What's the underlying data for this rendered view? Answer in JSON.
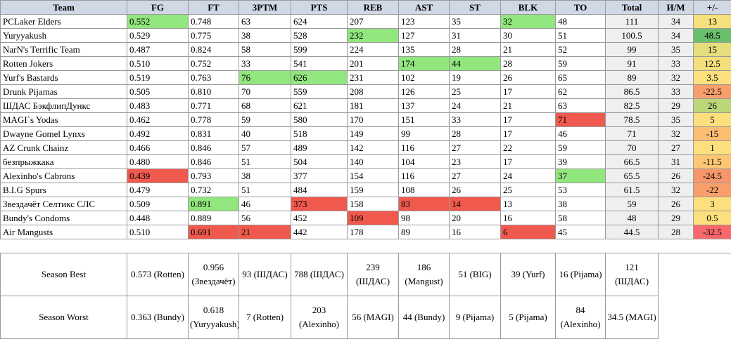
{
  "headers": [
    "Team",
    "FG",
    "FT",
    "3PTM",
    "PTS",
    "REB",
    "AST",
    "ST",
    "BLK",
    "TO",
    "Total",
    "И/М",
    "+/-"
  ],
  "colors": {
    "header": "#d0d8e6",
    "green_highlight": "#92e67e",
    "red_highlight": "#f05a4e",
    "total_bg": "#efefef"
  },
  "rows": [
    {
      "team": "PCLaker Elders",
      "fg": "0.552",
      "ft": "0.748",
      "tpm": "63",
      "pts": "624",
      "reb": "207",
      "ast": "123",
      "st": "35",
      "blk": "32",
      "to": "48",
      "total": "111",
      "im": "34",
      "pm": "13",
      "pm_color": "#f5e07c",
      "hl": {
        "fg": "green",
        "blk": "green"
      }
    },
    {
      "team": "Yuryyakush",
      "fg": "0.529",
      "ft": "0.775",
      "tpm": "38",
      "pts": "528",
      "reb": "232",
      "ast": "127",
      "st": "31",
      "blk": "30",
      "to": "51",
      "total": "100.5",
      "im": "34",
      "pm": "48.5",
      "pm_color": "#6abf6a",
      "hl": {
        "reb": "green"
      }
    },
    {
      "team": "NarN's Terrific Team",
      "fg": "0.487",
      "ft": "0.824",
      "tpm": "58",
      "pts": "599",
      "reb": "224",
      "ast": "135",
      "st": "28",
      "blk": "21",
      "to": "52",
      "total": "99",
      "im": "35",
      "pm": "15",
      "pm_color": "#e4df7c",
      "hl": {}
    },
    {
      "team": "Rotten Jokers",
      "fg": "0.510",
      "ft": "0.752",
      "tpm": "33",
      "pts": "541",
      "reb": "201",
      "ast": "174",
      "st": "44",
      "blk": "28",
      "to": "59",
      "total": "91",
      "im": "33",
      "pm": "12.5",
      "pm_color": "#f3df7c",
      "hl": {
        "ast": "green",
        "st": "green"
      }
    },
    {
      "team": "Yurf's Bastards",
      "fg": "0.519",
      "ft": "0.763",
      "tpm": "76",
      "pts": "626",
      "reb": "231",
      "ast": "102",
      "st": "19",
      "blk": "26",
      "to": "65",
      "total": "89",
      "im": "32",
      "pm": "3.5",
      "pm_color": "#fde07d",
      "hl": {
        "tpm": "green",
        "pts": "green"
      }
    },
    {
      "team": "Drunk Pijamas",
      "fg": "0.505",
      "ft": "0.810",
      "tpm": "70",
      "pts": "559",
      "reb": "208",
      "ast": "126",
      "st": "25",
      "blk": "17",
      "to": "62",
      "total": "86.5",
      "im": "33",
      "pm": "-22.5",
      "pm_color": "#f8a06c",
      "hl": {}
    },
    {
      "team": "ШДАС БэкфлипДункс",
      "fg": "0.483",
      "ft": "0.771",
      "tpm": "68",
      "pts": "621",
      "reb": "181",
      "ast": "137",
      "st": "24",
      "blk": "21",
      "to": "63",
      "total": "82.5",
      "im": "29",
      "pm": "26",
      "pm_color": "#bcd67a",
      "hl": {}
    },
    {
      "team": "MAGI`s Yodas",
      "fg": "0.462",
      "ft": "0.778",
      "tpm": "59",
      "pts": "580",
      "reb": "170",
      "ast": "151",
      "st": "33",
      "blk": "17",
      "to": "71",
      "total": "78.5",
      "im": "35",
      "pm": "5",
      "pm_color": "#fde07d",
      "hl": {
        "to": "red"
      }
    },
    {
      "team": "Dwayne Gomel Lynxs",
      "fg": "0.492",
      "ft": "0.831",
      "tpm": "40",
      "pts": "518",
      "reb": "149",
      "ast": "99",
      "st": "28",
      "blk": "17",
      "to": "46",
      "total": "71",
      "im": "32",
      "pm": "-15",
      "pm_color": "#fbbd72",
      "hl": {}
    },
    {
      "team": "AZ Crunk Chainz",
      "fg": "0.466",
      "ft": "0.846",
      "tpm": "57",
      "pts": "489",
      "reb": "142",
      "ast": "116",
      "st": "27",
      "blk": "22",
      "to": "59",
      "total": "70",
      "im": "27",
      "pm": "1",
      "pm_color": "#fde07d",
      "hl": {}
    },
    {
      "team": "безпрыжкака",
      "fg": "0.480",
      "ft": "0.846",
      "tpm": "51",
      "pts": "504",
      "reb": "140",
      "ast": "104",
      "st": "23",
      "blk": "17",
      "to": "39",
      "total": "66.5",
      "im": "31",
      "pm": "-11.5",
      "pm_color": "#fcc675",
      "hl": {}
    },
    {
      "team": "Alexinho's Cabrons",
      "fg": "0.439",
      "ft": "0.793",
      "tpm": "38",
      "pts": "377",
      "reb": "154",
      "ast": "116",
      "st": "27",
      "blk": "24",
      "to": "37",
      "total": "65.5",
      "im": "26",
      "pm": "-24.5",
      "pm_color": "#f8966b",
      "hl": {
        "fg": "red",
        "to": "green"
      }
    },
    {
      "team": "B.I.G Spurs",
      "fg": "0.479",
      "ft": "0.732",
      "tpm": "51",
      "pts": "484",
      "reb": "159",
      "ast": "108",
      "st": "26",
      "blk": "25",
      "to": "53",
      "total": "61.5",
      "im": "32",
      "pm": "-22",
      "pm_color": "#f8a06c",
      "hl": {}
    },
    {
      "team": "Звездачёт Селтикс СЛС",
      "fg": "0.509",
      "ft": "0.891",
      "tpm": "46",
      "pts": "373",
      "reb": "158",
      "ast": "83",
      "st": "14",
      "blk": "13",
      "to": "38",
      "total": "59",
      "im": "26",
      "pm": "3",
      "pm_color": "#fde07d",
      "hl": {
        "ft": "green",
        "pts": "red",
        "ast": "red",
        "st": "red"
      }
    },
    {
      "team": "Bundy's Condoms",
      "fg": "0.448",
      "ft": "0.889",
      "tpm": "56",
      "pts": "452",
      "reb": "109",
      "ast": "98",
      "st": "20",
      "blk": "16",
      "to": "58",
      "total": "48",
      "im": "29",
      "pm": "0.5",
      "pm_color": "#fde07d",
      "hl": {
        "reb": "red"
      }
    },
    {
      "team": "Air Mangusts",
      "fg": "0.510",
      "ft": "0.691",
      "tpm": "21",
      "pts": "442",
      "reb": "178",
      "ast": "89",
      "st": "16",
      "blk": "6",
      "to": "45",
      "total": "44.5",
      "im": "28",
      "pm": "-32.5",
      "pm_color": "#f8696b",
      "hl": {
        "ft": "red",
        "tpm": "red",
        "blk": "red"
      }
    }
  ],
  "season_best": {
    "label": "Season Best",
    "values": [
      "0.573 (Rotten)",
      "0.956 (Звездачёт)",
      "93 (ШДАС)",
      "788 (ШДАС)",
      "239 (ШДАС)",
      "186 (Mangust)",
      "51 (BIG)",
      "39 (Yurf)",
      "16 (Pijama)",
      "121 (ШДАС)"
    ]
  },
  "season_worst": {
    "label": "Season Worst",
    "values": [
      "0.363 (Bundy)",
      "0.618 (Yuryyakush)",
      "7 (Rotten)",
      "203 (Alexinho)",
      "56 (MAGI)",
      "44 (Bundy)",
      "9 (Pijama)",
      "5 (Pijama)",
      "84 (Alexinho)",
      "34.5 (MAGI)"
    ]
  }
}
